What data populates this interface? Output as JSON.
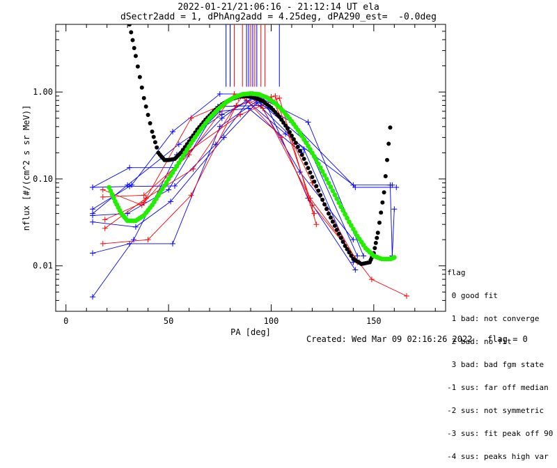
{
  "chart_data": {
    "type": "scatter",
    "title_lines": [
      "2022-01-21/21:06:16 - 21:12:14 UT ela",
      "dSectr2add = 1, dPhAng2add = 4.25deg, dPA290_est=  -0.0deg"
    ],
    "xlabel": "PA [deg]",
    "ylabel": "nflux [#/(cm^2 s sr MeV)]",
    "xlim": [
      -5,
      185
    ],
    "ylim": [
      0.003,
      6.0
    ],
    "ylog": true,
    "xticks": [
      0,
      50,
      100,
      150
    ],
    "xtick_labels": [
      "0",
      "50",
      "100",
      "150"
    ],
    "yticks": [
      0.01,
      0.1,
      1.0
    ],
    "ytick_labels": [
      "0.01",
      "0.10",
      "1.00"
    ],
    "colors": {
      "blue": "#0000ff",
      "red": "#ff0000",
      "black_fit": "#000000",
      "green_fit": "#22ee00"
    },
    "vertical_markers": {
      "y_bottom": 1.15,
      "red": [
        82,
        86,
        90,
        92,
        95,
        97
      ],
      "blue": [
        78,
        80,
        88,
        89,
        91,
        93,
        104
      ]
    },
    "series": [
      {
        "color": "blue",
        "x": [
          13,
          31,
          53,
          73,
          90,
          110,
          141,
          161
        ],
        "y": [
          0.08,
          0.082,
          0.083,
          0.25,
          0.85,
          0.45,
          0.08,
          0.08
        ]
      },
      {
        "color": "blue",
        "x": [
          13,
          31,
          53,
          76,
          88,
          107,
          140,
          159
        ],
        "y": [
          0.08,
          0.135,
          0.135,
          0.5,
          0.8,
          0.33,
          0.085,
          0.085
        ]
      },
      {
        "color": "blue",
        "x": [
          13,
          32,
          52,
          75,
          91,
          118,
          145
        ],
        "y": [
          0.045,
          0.085,
          0.35,
          0.95,
          0.95,
          0.45,
          0.013
        ]
      },
      {
        "color": "blue",
        "x": [
          13,
          30,
          55,
          76,
          92,
          117,
          142
        ],
        "y": [
          0.04,
          0.085,
          0.25,
          0.55,
          0.85,
          0.27,
          0.013
        ]
      },
      {
        "color": "blue",
        "x": [
          13,
          34,
          51,
          77,
          93,
          116,
          140
        ],
        "y": [
          0.032,
          0.028,
          0.055,
          0.3,
          0.75,
          0.22,
          0.011
        ]
      },
      {
        "color": "blue",
        "x": [
          13,
          31,
          52,
          75,
          96,
          118,
          141
        ],
        "y": [
          0.014,
          0.018,
          0.018,
          0.4,
          0.88,
          0.06,
          0.009
        ]
      },
      {
        "color": "blue",
        "x": [
          13,
          33,
          54,
          75,
          89,
          115
        ],
        "y": [
          0.0044,
          0.02,
          0.19,
          0.6,
          0.65,
          0.2
        ]
      },
      {
        "color": "blue",
        "x": [
          13,
          30,
          50,
          74,
          95,
          114,
          140
        ],
        "y": [
          0.038,
          0.04,
          0.075,
          0.68,
          0.7,
          0.12,
          0.02
        ]
      },
      {
        "color": "blue",
        "x": [
          160,
          159,
          158
        ],
        "y": [
          0.045,
          0.013,
          0.085
        ]
      },
      {
        "color": "red",
        "x": [
          18,
          38,
          60,
          82,
          96,
          119,
          149,
          166
        ],
        "y": [
          0.062,
          0.065,
          0.19,
          0.95,
          0.65,
          0.06,
          0.007,
          0.0045
        ]
      },
      {
        "color": "red",
        "x": [
          19,
          38,
          61,
          84,
          100,
          120,
          142
        ],
        "y": [
          0.034,
          0.054,
          0.5,
          0.85,
          0.88,
          0.09,
          0.011
        ]
      },
      {
        "color": "red",
        "x": [
          18,
          40,
          61,
          83,
          102,
          120,
          143
        ],
        "y": [
          0.018,
          0.02,
          0.065,
          0.7,
          0.9,
          0.05,
          0.011
        ]
      },
      {
        "color": "red",
        "x": [
          19,
          39,
          62,
          86,
          105,
          121
        ],
        "y": [
          0.027,
          0.06,
          0.13,
          0.9,
          0.3,
          0.04
        ]
      },
      {
        "color": "red",
        "x": [
          18,
          37,
          60,
          85,
          104,
          122
        ],
        "y": [
          0.075,
          0.05,
          0.21,
          0.55,
          0.85,
          0.03
        ]
      }
    ],
    "fits": [
      {
        "name": "",
        "color": "black_fit",
        "x": [
          31,
          34,
          38,
          42,
          45,
          48,
          50,
          53,
          56,
          60,
          64,
          68,
          72,
          76,
          80,
          84,
          88,
          92,
          96,
          100,
          104,
          108,
          112,
          116,
          120,
          124,
          128,
          132,
          136,
          140,
          144,
          148,
          150,
          152,
          155,
          158
        ],
        "y": [
          6.0,
          2.6,
          0.85,
          0.35,
          0.2,
          0.165,
          0.165,
          0.17,
          0.2,
          0.27,
          0.37,
          0.48,
          0.6,
          0.72,
          0.82,
          0.88,
          0.9,
          0.86,
          0.78,
          0.66,
          0.52,
          0.38,
          0.26,
          0.17,
          0.105,
          0.065,
          0.04,
          0.026,
          0.017,
          0.012,
          0.0105,
          0.011,
          0.014,
          0.024,
          0.07,
          0.39
        ]
      },
      {
        "name": "",
        "color": "green_fit",
        "x": [
          21,
          24,
          27,
          30,
          34,
          38,
          42,
          46,
          50,
          54,
          58,
          62,
          66,
          70,
          74,
          78,
          82,
          86,
          90,
          94,
          98,
          102,
          106,
          110,
          114,
          118,
          122,
          126,
          130,
          134,
          138,
          142,
          146,
          150,
          154,
          158,
          160
        ],
        "y": [
          0.08,
          0.055,
          0.04,
          0.033,
          0.033,
          0.038,
          0.05,
          0.07,
          0.1,
          0.14,
          0.2,
          0.28,
          0.38,
          0.5,
          0.63,
          0.76,
          0.87,
          0.94,
          0.96,
          0.94,
          0.86,
          0.74,
          0.6,
          0.46,
          0.34,
          0.24,
          0.165,
          0.11,
          0.073,
          0.048,
          0.032,
          0.022,
          0.016,
          0.013,
          0.012,
          0.012,
          0.0125
        ]
      }
    ]
  },
  "flag_legend": {
    "heading": "flag",
    "items": [
      " 0 good fit",
      " 1 bad: not converge",
      " 2 bad: no fit",
      " 3 bad: bad fgm state",
      "-1 sus: far off median",
      "-2 sus: not symmetric",
      "-3 sus: fit peak off 90",
      "-4 sus: peaks high var"
    ]
  },
  "footer": {
    "created": "Created: Wed Mar 09 02:16:26 2022",
    "flag": "flag = 0"
  }
}
